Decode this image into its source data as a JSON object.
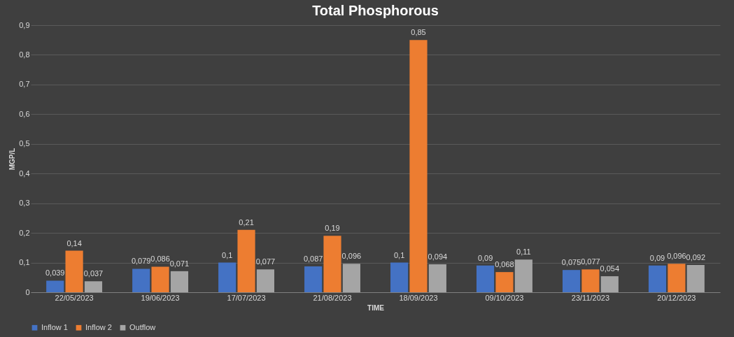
{
  "chart_data": {
    "type": "bar",
    "title": "Total Phosphorous",
    "xlabel": "TIME",
    "ylabel": "MGP/L",
    "categories": [
      "22/05/2023",
      "19/06/2023",
      "17/07/2023",
      "21/08/2023",
      "18/09/2023",
      "09/10/2023",
      "23/11/2023",
      "20/12/2023"
    ],
    "series": [
      {
        "name": "Inflow 1",
        "color": "#4472c4",
        "values": [
          0.039,
          0.079,
          0.1,
          0.087,
          0.1,
          0.09,
          0.075,
          0.09
        ],
        "value_labels": [
          "0,039",
          "0,079",
          "0,1",
          "0,087",
          "0,1",
          "0,09",
          "0,075",
          "0,09"
        ]
      },
      {
        "name": "Inflow 2",
        "color": "#ed7d31",
        "values": [
          0.14,
          0.086,
          0.21,
          0.19,
          0.85,
          0.068,
          0.077,
          0.096
        ],
        "value_labels": [
          "0,14",
          "0,086",
          "0,21",
          "0,19",
          "0,85",
          "0,068",
          "0,077",
          "0,096"
        ]
      },
      {
        "name": "Outflow",
        "color": "#a5a5a5",
        "values": [
          0.037,
          0.071,
          0.077,
          0.096,
          0.094,
          0.11,
          0.054,
          0.092
        ],
        "value_labels": [
          "0,037",
          "0,071",
          "0,077",
          "0,096",
          "0,094",
          "0,11",
          "0,054",
          "0,092"
        ]
      }
    ],
    "ylim": [
      0,
      0.9
    ],
    "yticks": [
      0,
      {
        "value": 0.1,
        "label": "0,1"
      },
      {
        "value": 0.2,
        "label": "0,2"
      },
      {
        "value": 0.3,
        "label": "0,3"
      },
      {
        "value": 0.4,
        "label": "0,4"
      },
      {
        "value": 0.5,
        "label": "0,5"
      },
      {
        "value": 0.6,
        "label": "0,6"
      },
      {
        "value": 0.7,
        "label": "0,7"
      },
      {
        "value": 0.8,
        "label": "0,8"
      },
      {
        "value": 0.9,
        "label": "0,9"
      }
    ],
    "grid": "y",
    "legend": "bottom"
  }
}
